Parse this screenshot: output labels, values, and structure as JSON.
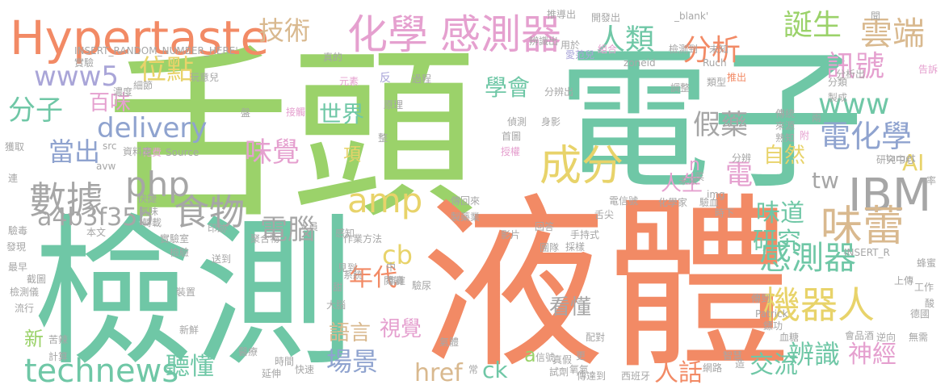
{
  "palette": {
    "green": "#9bd26a",
    "teal": "#6fc7a6",
    "orange": "#f28a65",
    "pink": "#e5a0cf",
    "lavender": "#a9a5d8",
    "blue": "#8fa3cf",
    "tan": "#d9b98f",
    "yellow": "#e8d36a",
    "gray": "#a6a6a6"
  },
  "words": [
    {
      "t": "舌頭",
      "c": "green"
    },
    {
      "t": "電子",
      "c": "teal"
    },
    {
      "t": "液體",
      "c": "orange"
    },
    {
      "t": "檢測",
      "c": "teal"
    },
    {
      "t": "Hypertaste",
      "c": "orange"
    },
    {
      "t": "化學",
      "c": "pink"
    },
    {
      "t": "感測器",
      "c": "pink"
    },
    {
      "t": "成分",
      "c": "yellow"
    },
    {
      "t": "IBM",
      "c": "gray"
    },
    {
      "t": "味蕾",
      "c": "tan"
    },
    {
      "t": "機器人",
      "c": "yellow"
    },
    {
      "t": "感測器",
      "c": "teal"
    },
    {
      "t": "數據",
      "c": "gray"
    },
    {
      "t": "食物",
      "c": "gray"
    },
    {
      "t": "php",
      "c": "gray"
    },
    {
      "t": "amp",
      "c": "yellow"
    },
    {
      "t": "technews",
      "c": "teal"
    },
    {
      "t": "電化學",
      "c": "blue"
    },
    {
      "t": "雲端",
      "c": "tan"
    },
    {
      "t": "人類",
      "c": "teal"
    },
    {
      "t": "分析",
      "c": "orange"
    },
    {
      "t": "誕生",
      "c": "green"
    },
    {
      "t": "訊號",
      "c": "pink"
    },
    {
      "t": "www",
      "c": "teal"
    },
    {
      "t": "www5",
      "c": "lavender"
    },
    {
      "t": "位點",
      "c": "yellow"
    },
    {
      "t": "技術",
      "c": "tan"
    },
    {
      "t": "分子",
      "c": "teal"
    },
    {
      "t": "delivery",
      "c": "blue"
    },
    {
      "t": "百味",
      "c": "pink"
    },
    {
      "t": "當出",
      "c": "blue"
    },
    {
      "t": "味覺",
      "c": "pink"
    },
    {
      "t": "假藥",
      "c": "gray"
    },
    {
      "t": "學會",
      "c": "teal"
    },
    {
      "t": "世界",
      "c": "teal"
    },
    {
      "t": "電",
      "c": "pink"
    },
    {
      "t": "AI",
      "c": "yellow"
    },
    {
      "t": "tw",
      "c": "gray"
    },
    {
      "t": "自然",
      "c": "yellow"
    },
    {
      "t": "人生",
      "c": "pink"
    },
    {
      "t": "a4b3f35b",
      "c": "gray"
    },
    {
      "t": "電腦",
      "c": "gray"
    },
    {
      "t": "味道",
      "c": "teal"
    },
    {
      "t": "研究",
      "c": "teal"
    },
    {
      "t": "cb",
      "c": "yellow"
    },
    {
      "t": "年代",
      "c": "orange"
    },
    {
      "t": "看懂",
      "c": "gray"
    },
    {
      "t": "語言",
      "c": "tan"
    },
    {
      "t": "視覺",
      "c": "pink"
    },
    {
      "t": "場景",
      "c": "blue"
    },
    {
      "t": "聽懂",
      "c": "teal"
    },
    {
      "t": "href",
      "c": "tan"
    },
    {
      "t": "ck",
      "c": "teal"
    },
    {
      "t": "a",
      "c": "green"
    },
    {
      "t": "人話",
      "c": "orange"
    },
    {
      "t": "辨識",
      "c": "teal"
    },
    {
      "t": "交流",
      "c": "teal"
    },
    {
      "t": "神經",
      "c": "pink"
    },
    {
      "t": "新",
      "c": "green"
    },
    {
      "t": "項",
      "c": "yellow"
    },
    {
      "t": "n",
      "c": "pink"
    },
    {
      "t": "推導出",
      "c": "gray"
    },
    {
      "t": "_blank'",
      "c": "gray"
    },
    {
      "t": "開發出",
      "c": "gray"
    },
    {
      "t": "聞",
      "c": "gray"
    },
    {
      "t": "辨識出",
      "c": "gray"
    },
    {
      "t": "用於",
      "c": "gray"
    },
    {
      "t": "組合",
      "c": "pink"
    },
    {
      "t": "檢測到",
      "c": "gray"
    },
    {
      "t": "未知",
      "c": "gray"
    },
    {
      "t": "INSERT_RANDOM_NUMBER_HERE'",
      "c": "gray"
    },
    {
      "t": "實驗",
      "c": "gray"
    },
    {
      "t": "愛范兒",
      "c": "lavender"
    },
    {
      "t": "zoneid",
      "c": "gray"
    },
    {
      "t": "Ruch",
      "c": "gray"
    },
    {
      "t": "分析出",
      "c": "gray"
    },
    {
      "t": "告訴",
      "c": "pink"
    },
    {
      "t": "真的",
      "c": "gray"
    },
    {
      "t": "元素",
      "c": "pink"
    },
    {
      "t": "反",
      "c": "lavender"
    },
    {
      "t": "過程",
      "c": "gray"
    },
    {
      "t": "分辨出",
      "c": "gray"
    },
    {
      "t": "推出",
      "c": "orange"
    },
    {
      "t": "調整",
      "c": "gray"
    },
    {
      "t": "類型",
      "c": "gray"
    },
    {
      "t": "濃度",
      "c": "gray"
    },
    {
      "t": "細節",
      "c": "gray"
    },
    {
      "t": "玩意兒",
      "c": "gray"
    },
    {
      "t": "盤",
      "c": "gray"
    },
    {
      "t": "接觸",
      "c": "pink"
    },
    {
      "t": "原理",
      "c": "gray"
    },
    {
      "t": "花費",
      "c": "pink"
    },
    {
      "t": "資料庫",
      "c": "gray"
    },
    {
      "t": "Source",
      "c": "gray"
    },
    {
      "t": "偵測",
      "c": "gray"
    },
    {
      "t": "身影",
      "c": "gray"
    },
    {
      "t": "首圖",
      "c": "gray"
    },
    {
      "t": "授權",
      "c": "pink"
    },
    {
      "t": "傳統",
      "c": "gray"
    },
    {
      "t": "來源",
      "c": "gray"
    },
    {
      "t": "熟知",
      "c": "gray"
    },
    {
      "t": "附",
      "c": "pink"
    },
    {
      "t": "兩",
      "c": "gray"
    },
    {
      "t": "分辨",
      "c": "gray"
    },
    {
      "t": "研究中心",
      "c": "gray"
    },
    {
      "t": "target",
      "c": "gray"
    },
    {
      "t": "未來",
      "c": "gray"
    },
    {
      "t": "菜",
      "c": "gray"
    },
    {
      "t": "率",
      "c": "gray"
    },
    {
      "t": "獲取",
      "c": "gray"
    },
    {
      "t": "src",
      "c": "gray"
    },
    {
      "t": "連",
      "c": "gray"
    },
    {
      "t": "avw",
      "c": "gray"
    },
    {
      "t": "快捷",
      "c": "gray"
    },
    {
      "t": "氣味",
      "c": "gray"
    },
    {
      "t": "轉載",
      "c": "gray"
    },
    {
      "t": "印跡",
      "c": "gray"
    },
    {
      "t": "聚合物",
      "c": "gray"
    },
    {
      "t": "傳回來",
      "c": "gray"
    },
    {
      "t": "電信號",
      "c": "gray"
    },
    {
      "t": "化學家",
      "c": "gray"
    },
    {
      "t": "驗血",
      "c": "gray"
    },
    {
      "t": "時下",
      "c": "gray"
    },
    {
      "t": "img",
      "c": "gray"
    },
    {
      "t": "驗毒",
      "c": "gray"
    },
    {
      "t": "本文",
      "c": "gray"
    },
    {
      "t": "實驗室",
      "c": "gray"
    },
    {
      "t": "人員",
      "c": "gray"
    },
    {
      "t": "製藥業",
      "c": "gray"
    },
    {
      "t": "回答",
      "c": "gray"
    },
    {
      "t": "舌尖",
      "c": "gray"
    },
    {
      "t": "發現",
      "c": "gray"
    },
    {
      "t": "檢驗",
      "c": "gray"
    },
    {
      "t": "感知",
      "c": "gray"
    },
    {
      "t": "影片",
      "c": "gray"
    },
    {
      "t": "手持式",
      "c": "gray"
    },
    {
      "t": "最早",
      "c": "gray"
    },
    {
      "t": "送到",
      "c": "gray"
    },
    {
      "t": "作業",
      "c": "gray"
    },
    {
      "t": "方法",
      "c": "gray"
    },
    {
      "t": "團隊",
      "c": "gray"
    },
    {
      "t": "採樣",
      "c": "gray"
    },
    {
      "t": "INSERT_R",
      "c": "gray"
    },
    {
      "t": "蜂蜜",
      "c": "gray"
    },
    {
      "t": "截圖",
      "c": "gray"
    },
    {
      "t": "中",
      "c": "gray"
    },
    {
      "t": "見到",
      "c": "gray"
    },
    {
      "t": "準確",
      "c": "gray"
    },
    {
      "t": "系統",
      "c": "gray"
    },
    {
      "t": "閱讀",
      "c": "gray"
    },
    {
      "t": "驗尿",
      "c": "gray"
    },
    {
      "t": "上傳",
      "c": "gray"
    },
    {
      "t": "工作",
      "c": "gray"
    },
    {
      "t": "檢測儀",
      "c": "gray"
    },
    {
      "t": "裝置",
      "c": "gray"
    },
    {
      "t": "甜",
      "c": "gray"
    },
    {
      "t": "傳到",
      "c": "gray"
    },
    {
      "t": "流行",
      "c": "gray"
    },
    {
      "t": "大腦",
      "c": "gray"
    },
    {
      "t": "酸",
      "c": "gray"
    },
    {
      "t": "德國",
      "c": "gray"
    },
    {
      "t": "Patrick",
      "c": "gray"
    },
    {
      "t": "鏢功",
      "c": "gray"
    },
    {
      "t": "新鮮",
      "c": "gray"
    },
    {
      "t": "苦辣",
      "c": "gray"
    },
    {
      "t": "氣體",
      "c": "gray"
    },
    {
      "t": "配對",
      "c": "gray"
    },
    {
      "t": "血糖",
      "c": "gray"
    },
    {
      "t": "會品酒",
      "c": "gray"
    },
    {
      "t": "逆向",
      "c": "gray"
    },
    {
      "t": "無需",
      "c": "gray"
    },
    {
      "t": "計算",
      "c": "gray"
    },
    {
      "t": "醫療",
      "c": "gray"
    },
    {
      "t": "常",
      "c": "gray"
    },
    {
      "t": "信號",
      "c": "gray"
    },
    {
      "t": "真假",
      "c": "gray"
    },
    {
      "t": "更",
      "c": "gray"
    },
    {
      "t": "智慧",
      "c": "gray"
    },
    {
      "t": "造",
      "c": "gray"
    },
    {
      "t": "時間",
      "c": "gray"
    },
    {
      "t": "延伸",
      "c": "gray"
    },
    {
      "t": "快速",
      "c": "gray"
    },
    {
      "t": "試劑",
      "c": "gray"
    },
    {
      "t": "氧氣",
      "c": "gray"
    },
    {
      "t": "傳達到",
      "c": "gray"
    },
    {
      "t": "西班牙",
      "c": "gray"
    },
    {
      "t": "網路",
      "c": "gray"
    },
    {
      "t": "製成",
      "c": "gray"
    },
    {
      "t": "分類",
      "c": "gray"
    },
    {
      "t": "整",
      "c": "gray"
    }
  ]
}
